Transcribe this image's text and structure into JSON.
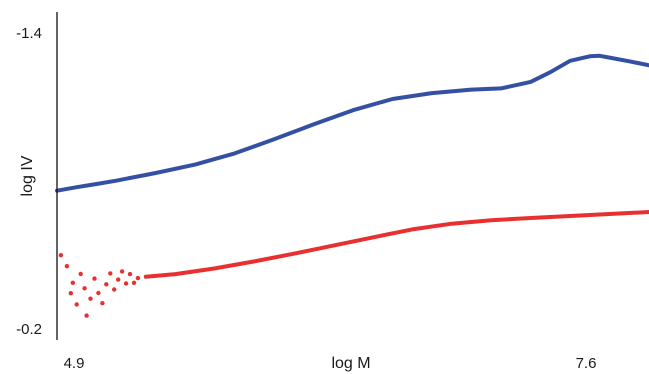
{
  "chart_data": {
    "type": "scatter",
    "title": "",
    "xlabel": "log M",
    "ylabel": "log IV",
    "xlim": [
      4.9,
      7.9
    ],
    "ylim": [
      -0.2,
      -1.4
    ],
    "x_ticks": [
      "4.9",
      "7.6"
    ],
    "y_ticks": [
      "-1.4",
      "-0.2"
    ],
    "grid": false,
    "legend": "none",
    "series": [
      {
        "color": "#3450a4",
        "style": "line",
        "points": [
          [
            4.9,
            -0.753
          ],
          [
            5.0,
            -0.767
          ],
          [
            5.1,
            -0.78
          ],
          [
            5.2,
            -0.793
          ],
          [
            5.4,
            -0.824
          ],
          [
            5.6,
            -0.858
          ],
          [
            5.8,
            -0.903
          ],
          [
            6.0,
            -0.96
          ],
          [
            6.2,
            -1.02
          ],
          [
            6.4,
            -1.077
          ],
          [
            6.6,
            -1.122
          ],
          [
            6.8,
            -1.146
          ],
          [
            7.0,
            -1.16
          ],
          [
            7.15,
            -1.165
          ],
          [
            7.3,
            -1.191
          ],
          [
            7.4,
            -1.23
          ],
          [
            7.5,
            -1.276
          ],
          [
            7.6,
            -1.294
          ],
          [
            7.65,
            -1.296
          ],
          [
            7.7,
            -1.289
          ],
          [
            7.8,
            -1.274
          ],
          [
            7.9,
            -1.258
          ]
        ]
      },
      {
        "color": "#e83030",
        "style": "line",
        "points": [
          [
            5.35,
            -0.406
          ],
          [
            5.5,
            -0.417
          ],
          [
            5.7,
            -0.44
          ],
          [
            5.9,
            -0.468
          ],
          [
            6.1,
            -0.499
          ],
          [
            6.3,
            -0.532
          ],
          [
            6.5,
            -0.565
          ],
          [
            6.7,
            -0.597
          ],
          [
            6.9,
            -0.62
          ],
          [
            7.1,
            -0.634
          ],
          [
            7.3,
            -0.643
          ],
          [
            7.5,
            -0.651
          ],
          [
            7.7,
            -0.659
          ],
          [
            7.9,
            -0.667
          ]
        ]
      },
      {
        "color": "#e83030",
        "style": "points",
        "points": [
          [
            4.92,
            -0.493
          ],
          [
            4.95,
            -0.449
          ],
          [
            4.97,
            -0.34
          ],
          [
            4.98,
            -0.382
          ],
          [
            5.0,
            -0.295
          ],
          [
            5.02,
            -0.418
          ],
          [
            5.04,
            -0.36
          ],
          [
            5.05,
            -0.25
          ],
          [
            5.07,
            -0.318
          ],
          [
            5.09,
            -0.399
          ],
          [
            5.11,
            -0.341
          ],
          [
            5.13,
            -0.3
          ],
          [
            5.15,
            -0.376
          ],
          [
            5.17,
            -0.42
          ],
          [
            5.19,
            -0.355
          ],
          [
            5.21,
            -0.395
          ],
          [
            5.23,
            -0.428
          ],
          [
            5.25,
            -0.379
          ],
          [
            5.27,
            -0.417
          ],
          [
            5.29,
            -0.382
          ],
          [
            5.31,
            -0.401
          ]
        ]
      }
    ]
  }
}
